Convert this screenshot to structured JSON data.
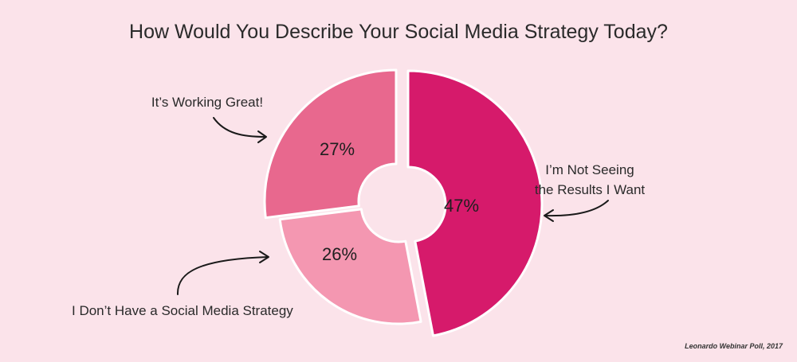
{
  "chart_data": {
    "type": "pie",
    "variant": "exploded-donut",
    "title": "How Would You Describe Your Social Media Strategy Today?",
    "slices": [
      {
        "label": "I'm Not Seeing the Results I Want",
        "value": 47,
        "value_label": "47%",
        "color": "#d61a6b"
      },
      {
        "label": "I Don't Have a Social Media Strategy",
        "value": 26,
        "value_label": "26%",
        "color": "#f497b1"
      },
      {
        "label": "It's Working Great!",
        "value": 27,
        "value_label": "27%",
        "color": "#e8688e"
      }
    ]
  },
  "callouts": {
    "working_great": "It’s Working Great!",
    "not_seeing_line1": "I’m Not Seeing",
    "not_seeing_line2": "the Results I Want",
    "no_strategy": "I Don’t Have a Social Media Strategy"
  },
  "source": "Leonardo Webinar Poll, 2017"
}
